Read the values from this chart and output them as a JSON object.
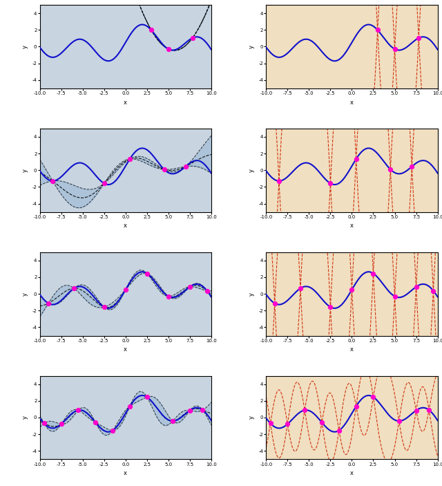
{
  "n_rows": 4,
  "n_cols": 2,
  "xlim": [
    -10,
    10
  ],
  "ylim": [
    -5,
    5
  ],
  "yticks": [
    -4,
    -2,
    0,
    2,
    4
  ],
  "xticks": [
    -10.0,
    -7.5,
    -5.0,
    -2.5,
    0.0,
    2.5,
    5.0,
    7.5,
    10.0
  ],
  "xticklabels": [
    "-10.0",
    "-7.5",
    "-5.0",
    "-2.5",
    "0.0",
    "2.5",
    "5.0",
    "7.5",
    "10.0"
  ],
  "xlabel": "x",
  "ylabel": "y",
  "left_bg_color": "#c8d4e0",
  "right_bg_color": "#f0dfc0",
  "gp_color": "#1111cc",
  "band_color": "#a8c0d8",
  "redline_color": "#cc2200",
  "obs_color": "#ff00cc",
  "obs_size": 18,
  "true_lw": 1.5,
  "mean_lw": 0.8,
  "bound_lw": 0.7,
  "red_lw": 0.8,
  "row_obs_x": [
    [
      3.0,
      5.0,
      7.8
    ],
    [
      -8.5,
      -2.5,
      0.5,
      4.5,
      7.0
    ],
    [
      -9.0,
      -6.0,
      -2.5,
      0.0,
      2.5,
      5.0,
      7.5,
      9.5
    ],
    [
      -9.5,
      -7.5,
      -5.5,
      -3.5,
      -1.5,
      0.5,
      2.5,
      5.5,
      7.5,
      9.0
    ]
  ],
  "left_gp_params": [
    {
      "l": 15.0,
      "prior_std": 3.2
    },
    {
      "l": 4.0,
      "prior_std": 2.5
    },
    {
      "l": 2.5,
      "prior_std": 2.0
    },
    {
      "l": 1.8,
      "prior_std": 1.8
    }
  ],
  "right_gp_params": [
    {
      "l": 0.5,
      "prior_std": 5.0
    },
    {
      "l": 0.5,
      "prior_std": 5.0
    },
    {
      "l": 0.5,
      "prior_std": 5.0
    },
    {
      "l": 0.9,
      "prior_std": 3.0
    }
  ]
}
